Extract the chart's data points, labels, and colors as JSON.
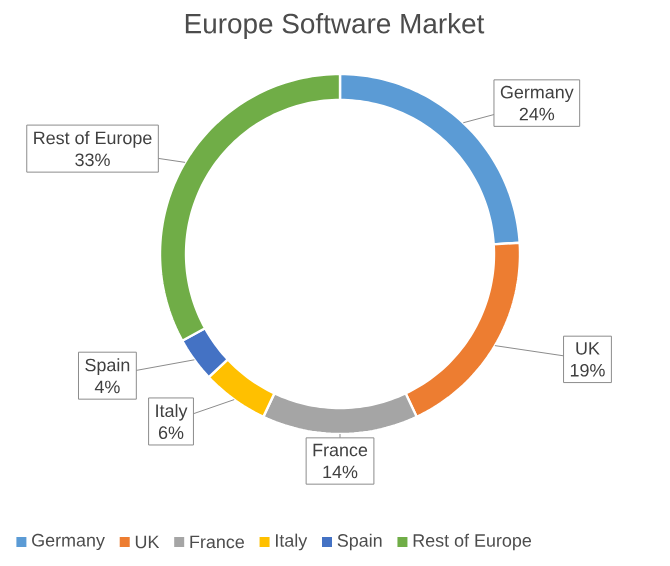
{
  "chart_data": {
    "type": "donut",
    "title": "Europe Software Market",
    "categories": [
      "Germany",
      "UK",
      "France",
      "Italy",
      "Spain",
      "Rest of Europe"
    ],
    "values": [
      24,
      19,
      14,
      6,
      4,
      33
    ],
    "value_labels": [
      "24%",
      "19%",
      "14%",
      "6%",
      "4%",
      "33%"
    ],
    "colors": [
      "#5b9bd5",
      "#ed7d31",
      "#a5a5a5",
      "#ffc000",
      "#4472c4",
      "#70ad47"
    ],
    "legend": "bottom"
  }
}
